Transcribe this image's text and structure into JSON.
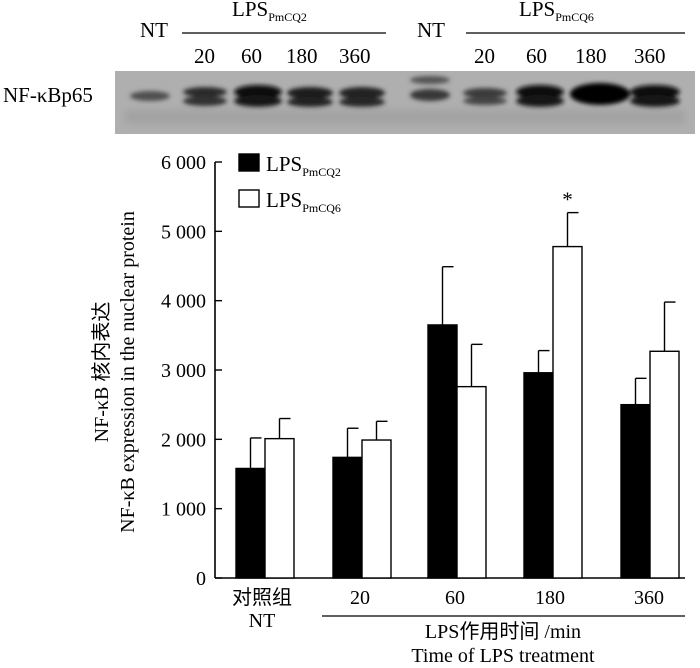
{
  "blot": {
    "row_label": "NF-κBp65",
    "groups": [
      {
        "label": "LPS",
        "label_sub": "PmCQ2"
      },
      {
        "label": "LPS",
        "label_sub": "PmCQ6"
      }
    ],
    "lanes": [
      "NT",
      "20",
      "60",
      "180",
      "360",
      "NT",
      "20",
      "60",
      "180",
      "360"
    ]
  },
  "chart_data": {
    "type": "bar",
    "categories": [
      "对照组",
      "20",
      "60",
      "180",
      "360"
    ],
    "category_sublabels": [
      "NT",
      "",
      "",
      "",
      ""
    ],
    "series": [
      {
        "name": "LPS",
        "name_sub": "PmCQ2",
        "color": "#000000",
        "values": [
          1580,
          1740,
          3650,
          2960,
          2500
        ],
        "errors": [
          440,
          420,
          840,
          320,
          380
        ]
      },
      {
        "name": "LPS",
        "name_sub": "PmCQ6",
        "color": "#ffffff",
        "values": [
          2010,
          1990,
          2760,
          4780,
          3270
        ],
        "errors": [
          290,
          270,
          610,
          490,
          710
        ]
      }
    ],
    "annotations": [
      {
        "category": "180",
        "series": 1,
        "text": "*"
      }
    ],
    "ylabel_cn": "NF-κB 核内表达",
    "ylabel_en": "NF-κB expression in the nuclear protein",
    "xlabel_cn": "LPS作用时间 /min",
    "xlabel_en": "Time of LPS treatment",
    "ylim": [
      0,
      6000
    ],
    "yticks": [
      0,
      1000,
      2000,
      3000,
      4000,
      5000,
      6000
    ],
    "ytick_labels": [
      "0",
      "1 000",
      "2 000",
      "3 000",
      "4 000",
      "5 000",
      "6 000"
    ],
    "legend_position": "top-left"
  }
}
